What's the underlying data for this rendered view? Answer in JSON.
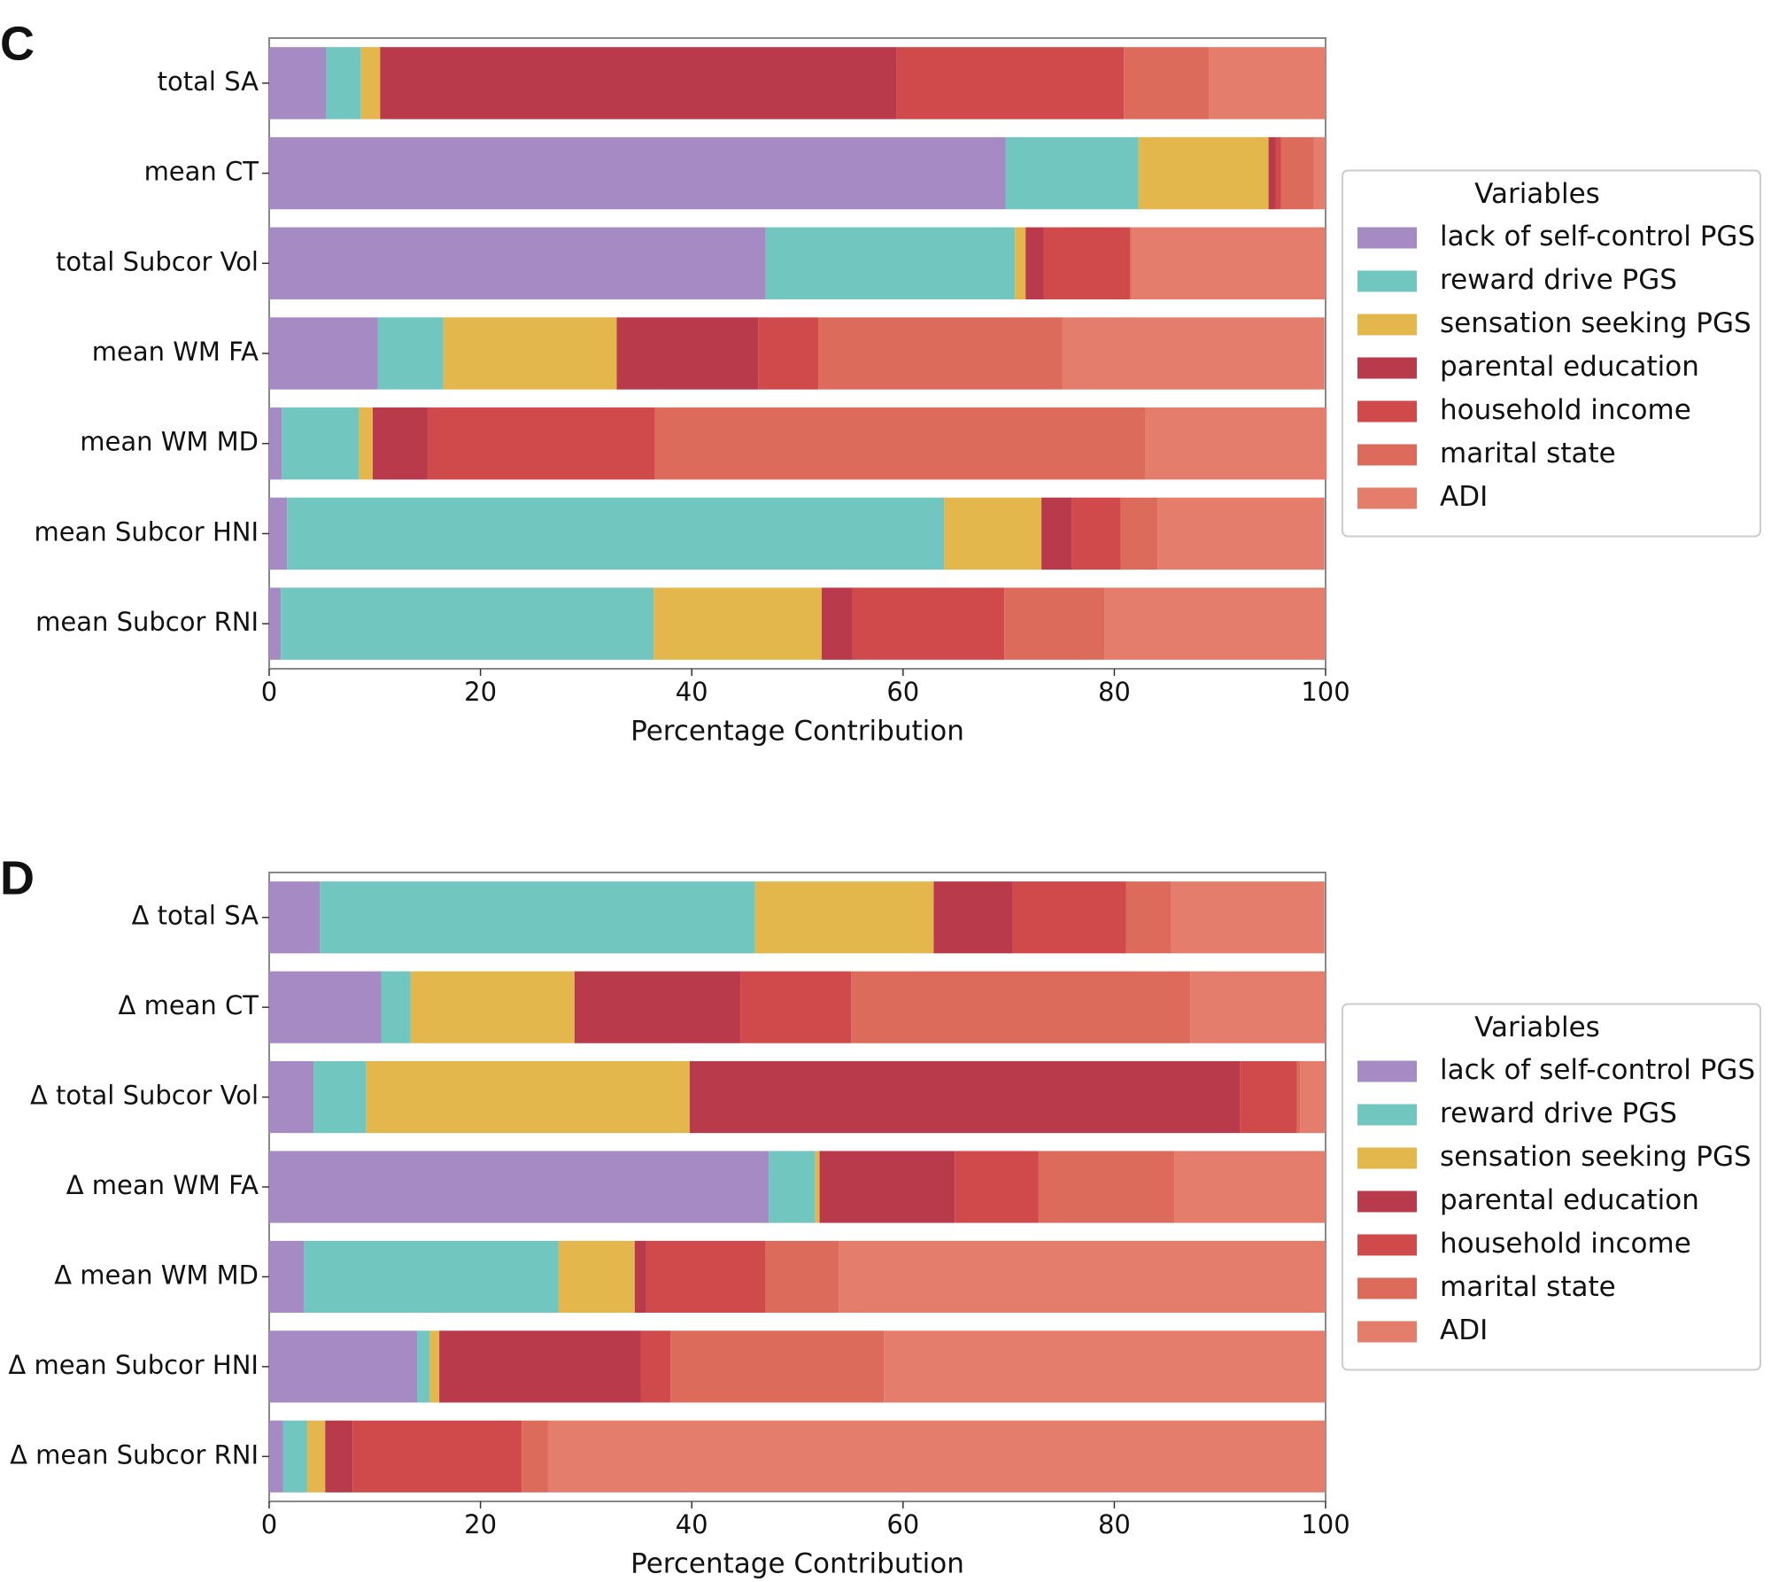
{
  "chart_data": [
    {
      "type": "stacked_barh",
      "panel_label": "C",
      "xlabel": "Percentage Contribution",
      "categories": [
        "total SA",
        "mean CT",
        "total Subcor Vol",
        "mean WM FA",
        "mean WM MD",
        "mean Subcor HNI",
        "mean Subcor RNI"
      ],
      "series": [
        {
          "name": "lack of self-control PGS",
          "color": "#a68ac4",
          "values": [
            5.4,
            69.7,
            47.0,
            10.3,
            1.2,
            1.7,
            1.1
          ]
        },
        {
          "name": "reward drive PGS",
          "color": "#72c6c0",
          "values": [
            3.3,
            12.6,
            23.6,
            6.2,
            7.3,
            62.2,
            35.3
          ]
        },
        {
          "name": "sensation seeking PGS",
          "color": "#e4b74c",
          "values": [
            1.8,
            12.3,
            1.0,
            16.4,
            1.3,
            9.2,
            15.9
          ]
        },
        {
          "name": "parental education",
          "color": "#b83a4b",
          "values": [
            48.9,
            0.7,
            1.7,
            13.4,
            5.2,
            2.9,
            2.9
          ]
        },
        {
          "name": "household income",
          "color": "#d04a4b",
          "values": [
            21.5,
            0.5,
            8.2,
            5.7,
            21.5,
            4.6,
            14.4
          ]
        },
        {
          "name": "marital state",
          "color": "#dc6b5c",
          "values": [
            8.1,
            3.1,
            0.1,
            23.1,
            46.4,
            3.5,
            9.5
          ]
        },
        {
          "name": "ADI",
          "color": "#e57d6d",
          "values": [
            11.0,
            1.1,
            18.4,
            24.8,
            17.2,
            15.8,
            20.9
          ]
        }
      ],
      "xlim": [
        0,
        100
      ],
      "xticks": [
        0,
        20,
        40,
        60,
        80,
        100
      ],
      "legend_title": "Variables",
      "legend": "right"
    },
    {
      "type": "stacked_barh",
      "panel_label": "D",
      "xlabel": "Percentage Contribution",
      "categories": [
        "Δ total SA",
        "Δ mean CT",
        "Δ total Subcor Vol",
        "Δ mean WM FA",
        "Δ mean WM MD",
        "Δ mean Subcor HNI",
        "Δ mean Subcor RNI"
      ],
      "series": [
        {
          "name": "lack of self-control PGS",
          "color": "#a68ac4",
          "values": [
            4.8,
            10.6,
            4.2,
            47.3,
            3.3,
            14.0,
            1.3
          ]
        },
        {
          "name": "reward drive PGS",
          "color": "#72c6c0",
          "values": [
            41.2,
            2.8,
            5.0,
            4.4,
            24.1,
            1.2,
            2.3
          ]
        },
        {
          "name": "sensation seeking PGS",
          "color": "#e4b74c",
          "values": [
            16.9,
            15.5,
            30.6,
            0.4,
            7.2,
            0.9,
            1.7
          ]
        },
        {
          "name": "parental education",
          "color": "#b83a4b",
          "values": [
            7.5,
            15.7,
            52.1,
            12.8,
            1.1,
            19.1,
            2.6
          ]
        },
        {
          "name": "household income",
          "color": "#d04a4b",
          "values": [
            10.7,
            10.5,
            5.4,
            7.9,
            11.3,
            2.8,
            16.0
          ]
        },
        {
          "name": "marital state",
          "color": "#dc6b5c",
          "values": [
            4.3,
            32.1,
            0.3,
            12.9,
            6.9,
            20.2,
            2.5
          ]
        },
        {
          "name": "ADI",
          "color": "#e57d6d",
          "values": [
            14.5,
            12.8,
            2.4,
            14.3,
            46.1,
            41.8,
            73.6
          ]
        }
      ],
      "xlim": [
        0,
        100
      ],
      "xticks": [
        0,
        20,
        40,
        60,
        80,
        100
      ],
      "legend_title": "Variables",
      "legend": "right"
    }
  ]
}
